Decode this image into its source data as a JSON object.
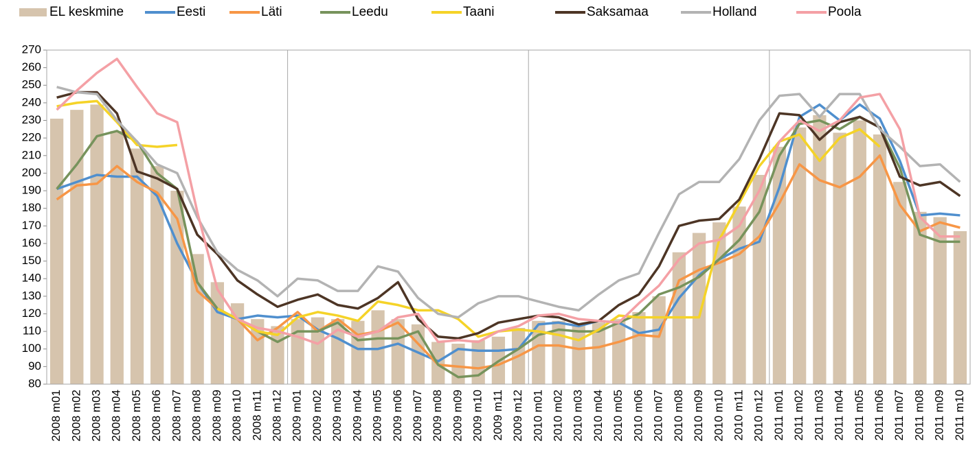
{
  "chart_data": {
    "type": "bar-line",
    "categories": [
      "2008 m01",
      "2008 m02",
      "2008 m03",
      "2008 m04",
      "2008 m05",
      "2008 m06",
      "2008 m07",
      "2008 m08",
      "2008 m09",
      "2008 m10",
      "2008 m11",
      "2008 m12",
      "2009 m01",
      "2009 m02",
      "2009 m03",
      "2009 m04",
      "2009 m05",
      "2009 m06",
      "2009 m07",
      "2009 m08",
      "2009 m09",
      "2009 m10",
      "2009 m11",
      "2009 m12",
      "2010 m01",
      "2010 m02",
      "2010 m03",
      "2010 m04",
      "2010 m05",
      "2010 m06",
      "2010 m07",
      "2010 m08",
      "2010 m09",
      "2010 m10",
      "2010 m11",
      "2010 m12",
      "2011 m01",
      "2011 m02",
      "2011 m03",
      "2011 m04",
      "2011 m05",
      "2011 m06",
      "2011 m07",
      "2011 m08",
      "2011 m09",
      "2011 m10"
    ],
    "series": [
      {
        "name": "EL keskmine",
        "type": "bar",
        "color": "#d6c4ad",
        "values": [
          231,
          236,
          239,
          224,
          214,
          204,
          190,
          154,
          138,
          126,
          117,
          113,
          117,
          118,
          117,
          116,
          122,
          117,
          114,
          104,
          103,
          105,
          107,
          112,
          116,
          116,
          114,
          115,
          117,
          121,
          130,
          155,
          166,
          172,
          181,
          199,
          215,
          226,
          233,
          223,
          230,
          222,
          195,
          178,
          175,
          167
        ]
      },
      {
        "name": "Eesti",
        "type": "line",
        "color": "#4f8fce",
        "values": [
          191,
          195,
          199,
          198,
          198,
          187,
          160,
          138,
          121,
          117,
          119,
          118,
          119,
          111,
          106,
          100,
          100,
          103,
          98,
          93,
          100,
          99,
          99,
          100,
          114,
          115,
          113,
          116,
          115,
          109,
          111,
          129,
          142,
          151,
          157,
          161,
          192,
          232,
          239,
          230,
          239,
          231,
          207,
          176,
          177,
          176
        ]
      },
      {
        "name": "Läti",
        "type": "line",
        "color": "#f79646",
        "values": [
          185,
          193,
          194,
          204,
          195,
          189,
          174,
          133,
          123,
          117,
          105,
          112,
          121,
          110,
          117,
          108,
          110,
          115,
          103,
          91,
          90,
          89,
          91,
          96,
          102,
          102,
          100,
          101,
          104,
          108,
          107,
          139,
          145,
          149,
          154,
          164,
          183,
          205,
          196,
          192,
          198,
          210,
          182,
          167,
          172,
          169
        ]
      },
      {
        "name": "Leedu",
        "type": "line",
        "color": "#77935c",
        "values": [
          191,
          205,
          221,
          224,
          218,
          200,
          191,
          138,
          123,
          117,
          110,
          104,
          110,
          110,
          115,
          105,
          106,
          106,
          110,
          91,
          84,
          85,
          93,
          100,
          108,
          111,
          110,
          110,
          115,
          120,
          131,
          135,
          141,
          151,
          162,
          178,
          210,
          228,
          230,
          225,
          232,
          226,
          203,
          165,
          161,
          161
        ]
      },
      {
        "name": "Taani",
        "type": "line",
        "color": "#f5d328",
        "values": [
          238,
          240,
          241,
          229,
          216,
          215,
          216,
          null,
          123,
          117,
          110,
          108,
          118,
          121,
          119,
          116,
          127,
          125,
          122,
          122,
          117,
          107,
          110,
          111,
          110,
          108,
          105,
          111,
          119,
          118,
          118,
          118,
          118,
          162,
          183,
          204,
          218,
          222,
          207,
          220,
          225,
          215,
          null,
          null,
          null,
          null
        ]
      },
      {
        "name": "Saksamaa",
        "type": "line",
        "color": "#4d3525",
        "values": [
          243,
          246,
          246,
          234,
          201,
          197,
          191,
          165,
          154,
          139,
          131,
          124,
          128,
          131,
          125,
          123,
          129,
          138,
          117,
          107,
          106,
          109,
          115,
          117,
          119,
          118,
          114,
          116,
          125,
          131,
          147,
          170,
          173,
          174,
          185,
          208,
          234,
          233,
          219,
          229,
          232,
          226,
          198,
          193,
          195,
          187
        ]
      },
      {
        "name": "Holland",
        "type": "line",
        "color": "#b3b3b3",
        "values": [
          249,
          246,
          245,
          230,
          218,
          205,
          200,
          175,
          155,
          145,
          139,
          130,
          140,
          139,
          133,
          133,
          147,
          144,
          129,
          120,
          118,
          126,
          130,
          130,
          127,
          124,
          122,
          131,
          139,
          143,
          166,
          188,
          195,
          195,
          208,
          230,
          244,
          245,
          232,
          245,
          245,
          225,
          215,
          204,
          205,
          195
        ]
      },
      {
        "name": "Poola",
        "type": "line",
        "color": "#f4a0a5",
        "values": [
          236,
          247,
          257,
          265,
          249,
          234,
          229,
          178,
          134,
          117,
          112,
          110,
          107,
          103,
          111,
          107,
          110,
          118,
          120,
          104,
          105,
          104,
          110,
          113,
          119,
          120,
          117,
          116,
          115,
          126,
          136,
          151,
          160,
          162,
          170,
          190,
          218,
          230,
          224,
          230,
          243,
          245,
          225,
          175,
          164,
          164
        ]
      }
    ],
    "ylim": [
      80,
      270
    ],
    "yticks": [
      80,
      90,
      100,
      110,
      120,
      130,
      140,
      150,
      160,
      170,
      180,
      190,
      200,
      210,
      220,
      230,
      240,
      250,
      260,
      270
    ]
  }
}
